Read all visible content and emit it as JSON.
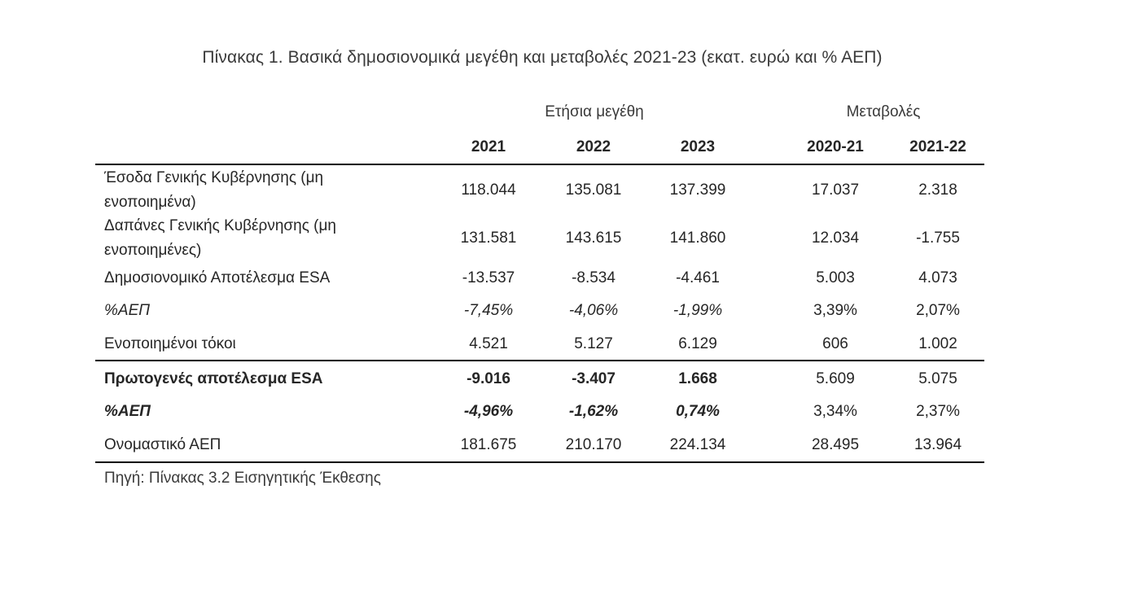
{
  "title": "Πίνακας 1. Βασικά δημοσιονομικά μεγέθη και μεταβολές 2021-23 (εκατ. ευρώ και % ΑΕΠ)",
  "groups": {
    "annual": "Ετήσια μεγέθη",
    "changes": "Μεταβολές"
  },
  "columns": [
    "2021",
    "2022",
    "2023",
    "2020-21",
    "2021-22"
  ],
  "rows": [
    {
      "label_line1": "Έσοδα Γενικής Κυβέρνησης (μη",
      "label_line2": "ενοποιημένα)",
      "values": [
        "118.044",
        "135.081",
        "137.399",
        "17.037",
        "2.318"
      ]
    },
    {
      "label_line1": "Δαπάνες Γενικής Κυβέρνησης (μη",
      "label_line2": "ενοποιημένες)",
      "values": [
        "131.581",
        "143.615",
        "141.860",
        "12.034",
        "-1.755"
      ]
    },
    {
      "label": "Δημοσιονομικό Αποτέλεσμα ESA",
      "values": [
        "-13.537",
        "-8.534",
        "-4.461",
        "5.003",
        "4.073"
      ]
    },
    {
      "label": "%ΑΕΠ",
      "values": [
        "-7,45%",
        "-4,06%",
        "-1,99%",
        "3,39%",
        "2,07%"
      ]
    },
    {
      "label": "Ενοποιημένοι τόκοι",
      "values": [
        "4.521",
        "5.127",
        "6.129",
        "606",
        "1.002"
      ]
    },
    {
      "label": "Πρωτογενές αποτέλεσμα ESA",
      "values": [
        "-9.016",
        "-3.407",
        "1.668",
        "5.609",
        "5.075"
      ]
    },
    {
      "label": "%ΑΕΠ",
      "values": [
        "-4,96%",
        "-1,62%",
        "0,74%",
        "3,34%",
        "2,37%"
      ]
    },
    {
      "label": "Ονομαστικό ΑΕΠ",
      "values": [
        "181.675",
        "210.170",
        "224.134",
        "28.495",
        "13.964"
      ]
    }
  ],
  "source": "Πηγή: Πίνακας 3.2 Εισηγητικής Έκθεσης"
}
